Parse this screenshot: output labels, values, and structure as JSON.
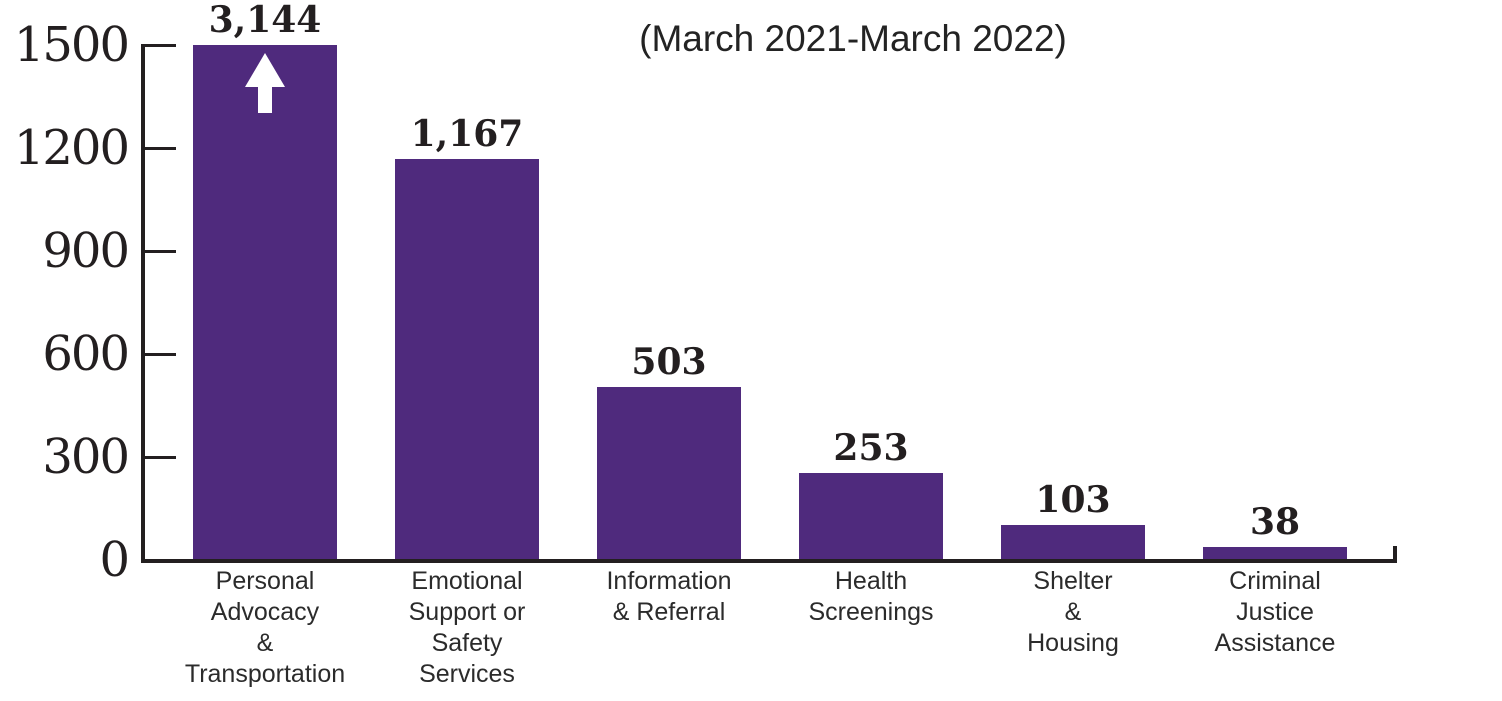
{
  "page": {
    "background_color": "#ffffff"
  },
  "chart_data": {
    "type": "bar",
    "title": "(March 2021-March 2022)",
    "categories": [
      "Personal Advocacy & Transportation",
      "Emotional Support or Safety Services",
      "Information & Referral",
      "Health Screenings",
      "Shelter & Housing",
      "Criminal Justice Assistance"
    ],
    "category_lines": [
      [
        "Personal",
        "Advocacy",
        "&",
        "Transportation"
      ],
      [
        "Emotional",
        "Support or",
        "Safety",
        "Services"
      ],
      [
        "Information",
        "& Referral"
      ],
      [
        "Health",
        "Screenings"
      ],
      [
        "Shelter",
        "&",
        "Housing"
      ],
      [
        "Criminal",
        "Justice",
        "Assistance"
      ]
    ],
    "values": [
      3144,
      1167,
      503,
      253,
      103,
      38
    ],
    "value_labels": [
      "3,144",
      "1,167",
      "503",
      "253",
      "103",
      "38"
    ],
    "xlabel": "",
    "ylabel": "",
    "ylim": [
      0,
      1500
    ],
    "yticks": [
      0,
      300,
      600,
      900,
      1200,
      1500
    ],
    "ytick_labels": [
      "0",
      "300",
      "600",
      "900",
      "1200",
      "1500"
    ],
    "grid": false,
    "legend": "none",
    "bar_color": "#4F2A7D",
    "axis_color": "#231F20",
    "text_color": "#231F20",
    "capped_bar_index": 0,
    "capped_bar_marker": "white up arrow (value exceeds axis maximum)"
  }
}
